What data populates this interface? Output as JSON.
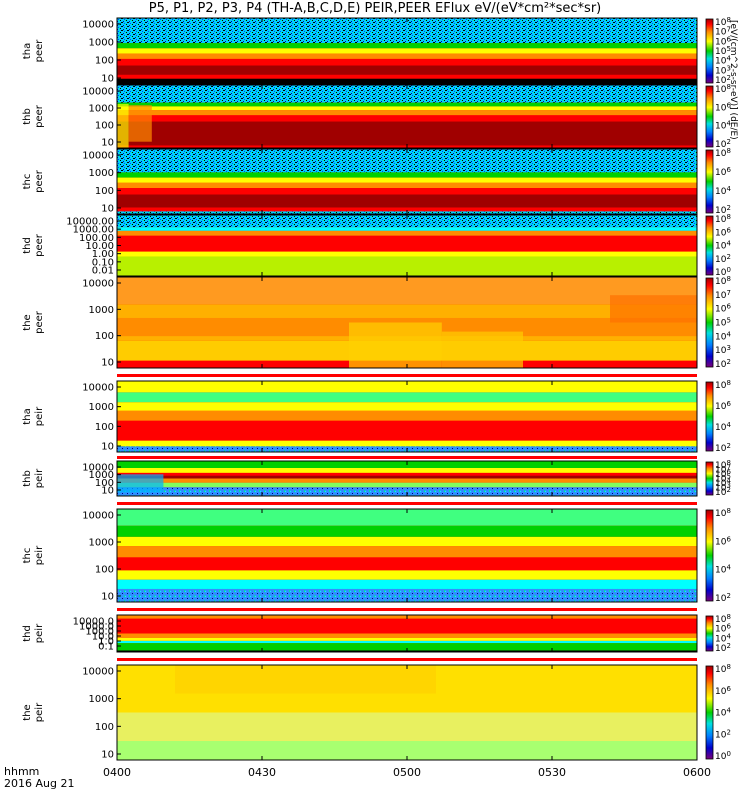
{
  "title": "P5, P1, P2, P3, P4 (TH-A,B,C,D,E) PEIR,PEER EFlux eV/(eV*cm²*sec*sr)",
  "x_axis": {
    "label_line1": "hhmm",
    "label_line2": "2016 Aug 21",
    "ticks": [
      "0400",
      "0430",
      "0500",
      "0530",
      "0600"
    ]
  },
  "colorbar_units": "[eV/(cm^2-s-sr-eV)] (dE/E)",
  "colors": {
    "dark_red": "#a00000",
    "red": "#ff0000",
    "orange": "#ff8c00",
    "yellow": "#ffff00",
    "green": "#00d000",
    "cyan": "#00ffff",
    "blue": "#0040ff",
    "navy": "#00008b",
    "black": "#000000"
  },
  "chart_data": [
    {
      "type": "heatmap",
      "probe": "tha",
      "species": "peer",
      "ylabel_line1": "tha",
      "ylabel_line2": "peer",
      "yticks": [
        "10000",
        "1000",
        "100",
        "10"
      ],
      "colorbar_ticks": [
        "10^8",
        "10^7",
        "10^6",
        "10^5",
        "10^4",
        "10^3",
        "10^2"
      ]
    },
    {
      "type": "heatmap",
      "probe": "thb",
      "species": "peer",
      "ylabel_line1": "thb",
      "ylabel_line2": "peer",
      "yticks": [
        "10000",
        "1000",
        "100",
        "10"
      ],
      "colorbar_ticks": [
        "10^8",
        "10^6",
        "10^4",
        "10^2"
      ]
    },
    {
      "type": "heatmap",
      "probe": "thc",
      "species": "peer",
      "ylabel_line1": "thc",
      "ylabel_line2": "peer",
      "yticks": [
        "10000",
        "1000",
        "100",
        "10"
      ],
      "colorbar_ticks": [
        "10^8",
        "10^6",
        "10^4",
        "10^2"
      ]
    },
    {
      "type": "heatmap",
      "probe": "thd",
      "species": "peer",
      "ylabel_line1": "thd",
      "ylabel_line2": "peer",
      "yticks": [
        "10000.00",
        "1000.00",
        "100.00",
        "10.00",
        "1.00",
        "0.10",
        "0.01"
      ],
      "colorbar_ticks": [
        "10^8",
        "10^6",
        "10^4",
        "10^2",
        "10^0"
      ]
    },
    {
      "type": "heatmap",
      "probe": "the",
      "species": "peer",
      "ylabel_line1": "the",
      "ylabel_line2": "peer",
      "yticks": [
        "10000",
        "1000",
        "100",
        "10"
      ],
      "colorbar_ticks": [
        "10^8",
        "10^7",
        "10^6",
        "10^5",
        "10^4",
        "10^3",
        "10^2"
      ]
    },
    {
      "type": "heatmap",
      "probe": "tha",
      "species": "peir",
      "ylabel_line1": "tha",
      "ylabel_line2": "peir",
      "yticks": [
        "10000",
        "1000",
        "100",
        "10"
      ],
      "colorbar_ticks": [
        "10^8",
        "10^6",
        "10^4",
        "10^2"
      ]
    },
    {
      "type": "heatmap",
      "probe": "thb",
      "species": "peir",
      "ylabel_line1": "thb",
      "ylabel_line2": "peir",
      "yticks": [
        "10000",
        "1000",
        "100",
        "10"
      ],
      "colorbar_ticks": [
        "10^8",
        "10^7",
        "10^6",
        "10^5",
        "10^4",
        "10^3",
        "10^2"
      ]
    },
    {
      "type": "heatmap",
      "probe": "thc",
      "species": "peir",
      "ylabel_line1": "thc",
      "ylabel_line2": "peir",
      "yticks": [
        "10000",
        "1000",
        "100",
        "10"
      ],
      "colorbar_ticks": [
        "10^8",
        "10^6",
        "10^4",
        "10^2"
      ]
    },
    {
      "type": "heatmap",
      "probe": "thd",
      "species": "peir",
      "ylabel_line1": "thd",
      "ylabel_line2": "peir",
      "yticks": [
        "10000.0",
        "1000.0",
        "100.0",
        "10.0",
        "1.0",
        "0.1"
      ],
      "colorbar_ticks": [
        "10^8",
        "10^6",
        "10^4",
        "10^2"
      ]
    },
    {
      "type": "heatmap",
      "probe": "the",
      "species": "peir",
      "ylabel_line1": "the",
      "ylabel_line2": "peir",
      "yticks": [
        "10000",
        "1000",
        "100",
        "10"
      ],
      "colorbar_ticks": [
        "10^8",
        "10^6",
        "10^4",
        "10^2",
        "10^0"
      ]
    }
  ]
}
